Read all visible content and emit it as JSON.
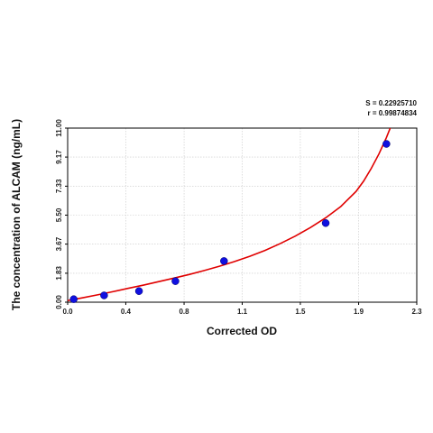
{
  "chart_data": {
    "type": "scatter",
    "title": "",
    "xlabel": "Corrected OD",
    "ylabel": "The concentration of ALCAM (ng/mL)",
    "xlim": [
      0,
      2.3
    ],
    "ylim": [
      0,
      11
    ],
    "x_ticks": [
      "0.0",
      "0.4",
      "0.8",
      "1.1",
      "1.5",
      "1.9",
      "2.3"
    ],
    "x_tick_values": [
      0,
      0.383,
      0.767,
      1.15,
      1.533,
      1.917,
      2.3
    ],
    "y_ticks": [
      "0.00",
      "1.83",
      "3.67",
      "5.50",
      "7.33",
      "9.17",
      "11.00"
    ],
    "y_tick_values": [
      0,
      1.83,
      3.67,
      5.5,
      7.33,
      9.17,
      11.0
    ],
    "grid": true,
    "annotations": [
      "S = 0.22925710",
      "r = 0.99874834"
    ],
    "series": [
      {
        "type": "scatter",
        "color": "#1010e0",
        "x": [
          0.04,
          0.24,
          0.47,
          0.71,
          1.03,
          1.7,
          2.1
        ],
        "y": [
          0.19,
          0.43,
          0.7,
          1.33,
          2.6,
          5.0,
          10.0
        ]
      },
      {
        "type": "line",
        "color": "#e00000",
        "x": [
          0.0,
          0.1,
          0.2,
          0.3,
          0.4,
          0.5,
          0.6,
          0.7,
          0.8,
          0.9,
          1.0,
          1.1,
          1.2,
          1.3,
          1.4,
          1.5,
          1.6,
          1.7,
          1.8,
          1.9,
          1.95,
          2.0,
          2.05,
          2.1,
          2.15,
          2.18
        ],
        "y": [
          0.1,
          0.28,
          0.47,
          0.67,
          0.88,
          1.08,
          1.3,
          1.52,
          1.75,
          2.0,
          2.27,
          2.57,
          2.9,
          3.27,
          3.7,
          4.18,
          4.72,
          5.33,
          6.05,
          7.0,
          7.65,
          8.45,
          9.35,
          10.4,
          11.6,
          12.4
        ]
      }
    ]
  }
}
